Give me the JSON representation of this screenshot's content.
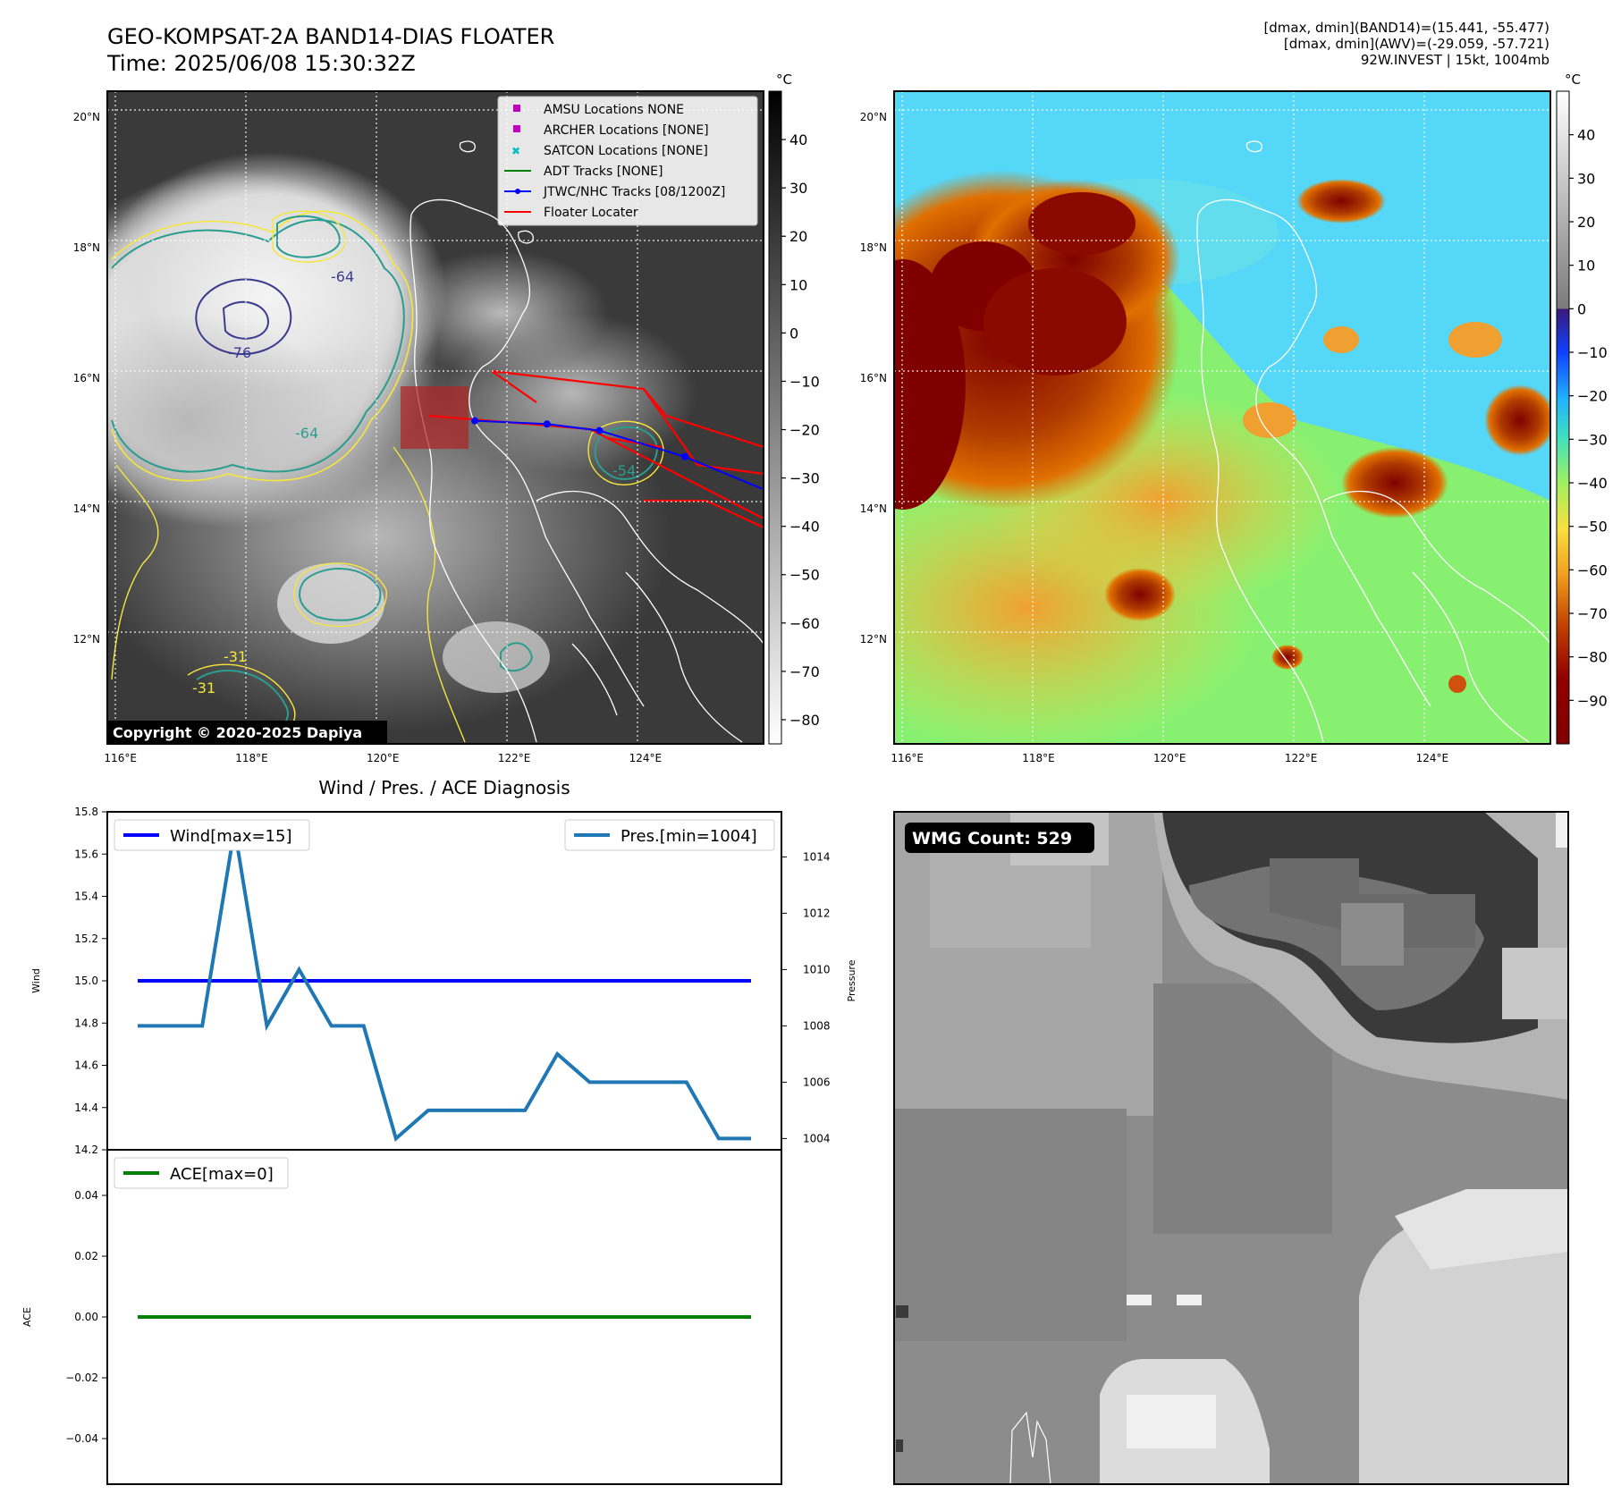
{
  "header": {
    "title_line1": "GEO-KOMPSAT-2A BAND14-DIAS FLOATER",
    "title_line2": "Time: 2025/06/08 15:30:32Z",
    "info_line1": "[dmax, dmin](BAND14)=(15.441, -55.477)",
    "info_line2": "[dmax, dmin](AWV)=(-29.059, -57.721)",
    "info_line3": "92W.INVEST | 15kt, 1004mb"
  },
  "map_common": {
    "lon_labels": [
      "116°E",
      "118°E",
      "120°E",
      "122°E",
      "124°E"
    ],
    "lat_labels": [
      "20°N",
      "18°N",
      "16°N",
      "14°N",
      "12°N"
    ],
    "lon_range": [
      115.8,
      125.8
    ],
    "lat_range": [
      10.4,
      20.4
    ]
  },
  "ir_map": {
    "colorbar_unit": "°C",
    "colorbar_ticks": [
      "40",
      "30",
      "20",
      "10",
      "0",
      "−10",
      "−20",
      "−30",
      "−40",
      "−50",
      "−60",
      "−70",
      "−80"
    ],
    "colorbar_range": [
      -85,
      50
    ],
    "copyright": "Copyright © 2020-2025 Dapiya",
    "contour_labels": [
      "-64",
      "-76",
      "-64",
      "-54",
      "-31",
      "-31"
    ],
    "legend": [
      {
        "label": "AMSU Locations NONE",
        "color": "#bf00bf"
      },
      {
        "label": "ARCHER Locations [NONE]",
        "color": "#bf00bf"
      },
      {
        "label": "SATCON Locations [NONE]",
        "color": "#00bfbf"
      },
      {
        "label": "ADT Tracks [NONE]",
        "color": "#008000"
      },
      {
        "label": "JTWC/NHC Tracks [08/1200Z]",
        "color": "#0000ff"
      },
      {
        "label": "Floater Locater",
        "color": "#ff0000"
      }
    ],
    "jtwc_track": [
      [
        121.4,
        15.35
      ],
      [
        122.5,
        15.3
      ],
      [
        123.3,
        15.2
      ],
      [
        124.6,
        14.8
      ],
      [
        125.8,
        14.3
      ]
    ]
  },
  "awv_map": {
    "colorbar_unit": "°C",
    "colorbar_ticks": [
      "40",
      "30",
      "20",
      "10",
      "0",
      "−10",
      "−20",
      "−30",
      "−40",
      "−50",
      "−60",
      "−70",
      "−80",
      "−90"
    ],
    "colorbar_range": [
      -100,
      50
    ]
  },
  "chart_data": [
    {
      "type": "line",
      "title": "Wind / Pres. / ACE Diagnosis",
      "ylabel": "Wind",
      "ylabel_right": "Pressure",
      "ylim": [
        14.2,
        15.8
      ],
      "yticks": [
        14.2,
        14.4,
        14.6,
        14.8,
        15.0,
        15.2,
        15.4,
        15.6,
        15.8
      ],
      "ylim_right": [
        1003.6,
        1015.6
      ],
      "yticks_right": [
        1004,
        1006,
        1008,
        1010,
        1012,
        1014
      ],
      "x": [
        0,
        1,
        2,
        3,
        4,
        5,
        6,
        7,
        8,
        9,
        10,
        11,
        12,
        13,
        14,
        15,
        16,
        17,
        18,
        19
      ],
      "series": [
        {
          "name": "Wind[max=15]",
          "axis": "left",
          "color": "#0000ff",
          "values": [
            15,
            15,
            15,
            15,
            15,
            15,
            15,
            15,
            15,
            15,
            15,
            15,
            15,
            15,
            15,
            15,
            15,
            15,
            15,
            15
          ]
        },
        {
          "name": "Pres.[min=1004]",
          "axis": "right",
          "color": "#1f77b4",
          "values": [
            1008,
            1008,
            1008,
            1015,
            1008,
            1010,
            1008,
            1008,
            1004,
            1005,
            1005,
            1005,
            1005,
            1007,
            1006,
            1006,
            1006,
            1006,
            1004,
            1004
          ]
        }
      ]
    },
    {
      "type": "line",
      "ylabel": "ACE",
      "ylim": [
        -0.055,
        0.055
      ],
      "yticks": [
        -0.04,
        -0.02,
        0.0,
        0.02,
        0.04
      ],
      "x": [
        0,
        1,
        2,
        3,
        4,
        5,
        6,
        7,
        8,
        9,
        10,
        11,
        12,
        13,
        14,
        15,
        16,
        17,
        18,
        19
      ],
      "series": [
        {
          "name": "ACE[max=0]",
          "color": "#008000",
          "values": [
            0,
            0,
            0,
            0,
            0,
            0,
            0,
            0,
            0,
            0,
            0,
            0,
            0,
            0,
            0,
            0,
            0,
            0,
            0,
            0
          ]
        }
      ]
    }
  ],
  "wmg": {
    "count_label": "WMG Count: 529"
  }
}
